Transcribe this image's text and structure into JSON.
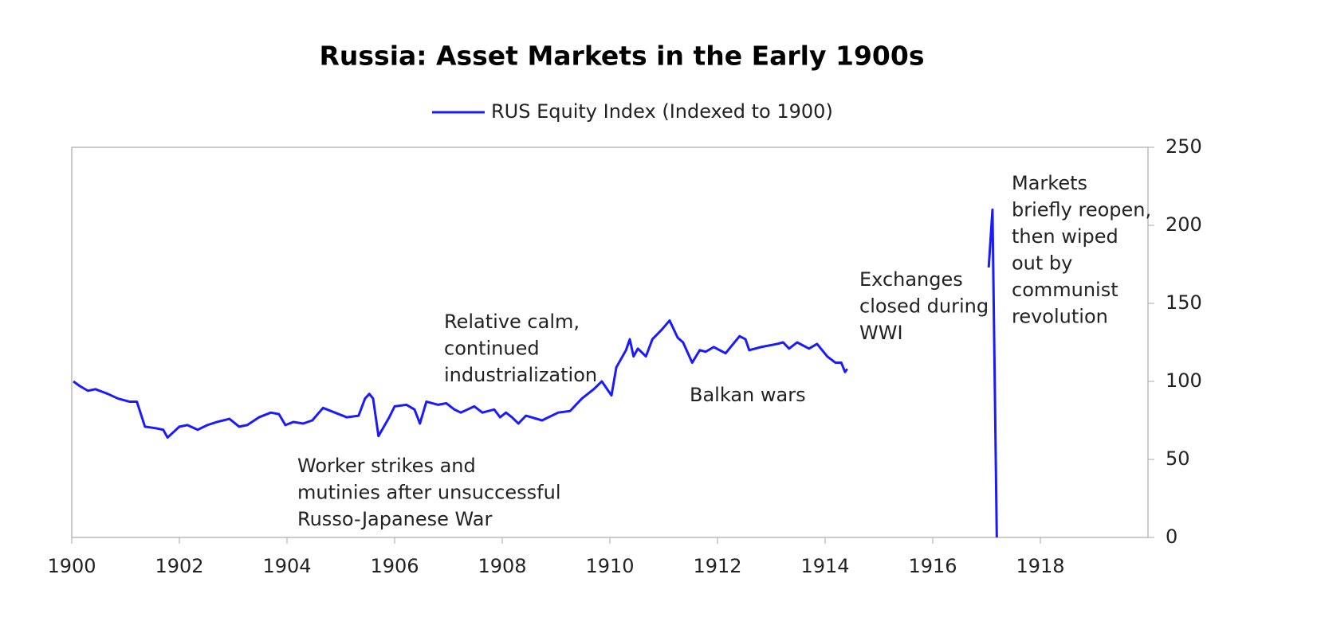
{
  "chart_data": {
    "type": "line",
    "title": "Russia: Asset Markets in the Early 1900s",
    "series": [
      {
        "name": "RUS Equity Index (Indexed to 1900)",
        "color": "#1a1aff",
        "x": [
          1900.03,
          1900.15,
          1900.3,
          1900.44,
          1900.67,
          1900.86,
          1901.07,
          1901.21,
          1901.36,
          1901.56,
          1901.7,
          1901.78,
          1902.0,
          1902.15,
          1902.34,
          1902.52,
          1902.7,
          1902.93,
          1903.11,
          1903.26,
          1903.48,
          1903.7,
          1903.85,
          1903.97,
          1904.12,
          1904.3,
          1904.47,
          1904.67,
          1904.89,
          1905.11,
          1905.33,
          1905.45,
          1905.53,
          1905.6,
          1905.7,
          1905.9,
          1906.0,
          1906.22,
          1906.37,
          1906.47,
          1906.59,
          1906.81,
          1906.96,
          1907.11,
          1907.23,
          1907.48,
          1907.63,
          1907.85,
          1907.96,
          1908.07,
          1908.18,
          1908.3,
          1908.44,
          1908.74,
          1909.04,
          1909.26,
          1909.48,
          1909.7,
          1909.85,
          1910.03,
          1910.12,
          1910.3,
          1910.37,
          1910.44,
          1910.52,
          1910.67,
          1910.79,
          1910.96,
          1911.11,
          1911.26,
          1911.36,
          1911.53,
          1911.67,
          1911.78,
          1911.93,
          1912.15,
          1912.41,
          1912.52,
          1912.59,
          1912.81,
          1913.11,
          1913.22,
          1913.33,
          1913.48,
          1913.7,
          1913.85,
          1914.04,
          1914.19,
          1914.3,
          1914.37,
          1914.41,
          1914.6,
          1917.04,
          1917.11,
          1917.19
        ],
        "values": [
          100,
          97,
          94,
          95,
          92,
          89,
          87,
          87,
          71,
          70,
          69,
          64,
          71,
          72,
          69,
          72,
          74,
          76,
          71,
          72,
          77,
          80,
          79,
          72,
          74,
          73,
          75,
          83,
          80,
          77,
          78,
          89,
          92,
          89,
          65,
          77,
          84,
          85,
          82,
          73,
          87,
          85,
          86,
          82,
          80,
          84,
          80,
          82,
          77,
          80,
          77,
          73,
          78,
          75,
          80,
          81,
          89,
          95,
          100,
          91,
          109,
          120,
          127,
          116,
          121,
          116,
          127,
          133,
          139,
          128,
          125,
          112,
          120,
          119,
          122,
          118,
          129,
          127,
          120,
          122,
          124,
          125,
          121,
          125,
          121,
          124,
          116,
          112,
          112,
          106,
          108,
          null,
          173,
          210,
          0
        ]
      }
    ],
    "xlim": [
      1900,
      1920
    ],
    "xticks": [
      1900,
      1902,
      1904,
      1906,
      1908,
      1910,
      1912,
      1914,
      1916,
      1918
    ],
    "ylim": [
      0,
      250
    ],
    "yticks": [
      0,
      50,
      100,
      150,
      200,
      250
    ],
    "annotations": [
      [
        "Worker strikes and",
        "mutinies after unsuccessful",
        "Russo-Japanese War"
      ],
      [
        "Relative calm,",
        "continued",
        "industrialization"
      ],
      [
        "Balkan wars"
      ],
      [
        "Exchanges",
        "closed during",
        "WWI"
      ],
      [
        "Markets",
        "briefly reopen,",
        "then wiped",
        "out by",
        "communist",
        "revolution"
      ]
    ]
  }
}
